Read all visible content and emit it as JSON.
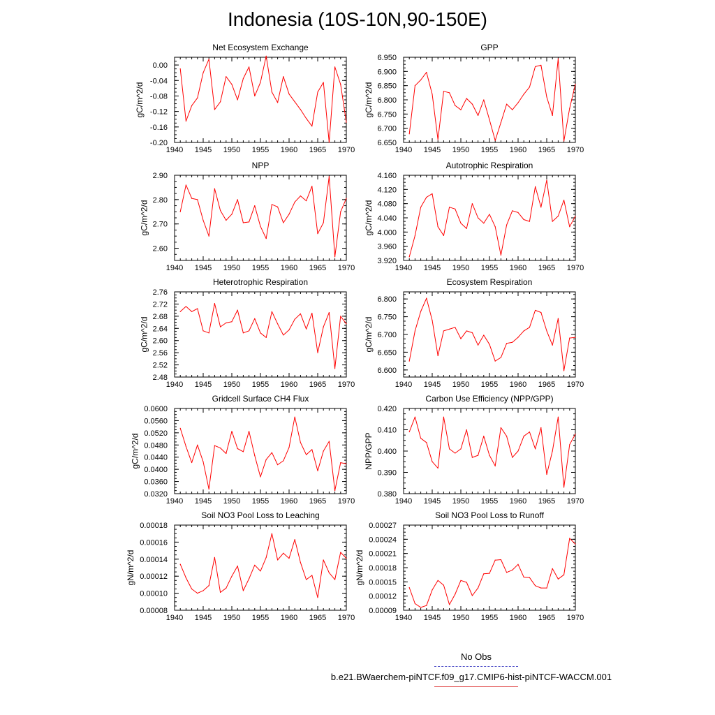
{
  "title": "Indonesia (10S-10N,90-150E)",
  "legend": {
    "obs_label": "No Obs",
    "model_label": "b.e21.BWaerchem-piNTCF.f09_g17.CMIP6-hist-piNTCF-WACCM.001",
    "obs_color": "#5050c8",
    "model_color": "#ff0000"
  },
  "chart_data": [
    {
      "type": "line",
      "title": "Net Ecosystem Exchange",
      "ylabel": "gC/m^2/d",
      "xlim": [
        1940,
        1970
      ],
      "ylim": [
        -0.2,
        0.02
      ],
      "yticks": [
        -0.2,
        -0.16,
        -0.12,
        -0.08,
        -0.04,
        0.0
      ],
      "ytick_labels": [
        "-0.20",
        "-0.16",
        "-0.12",
        "-0.08",
        "-0.04",
        "0.00"
      ],
      "xticks": [
        1940,
        1945,
        1950,
        1955,
        1960,
        1965,
        1970
      ],
      "x": [
        1941,
        1942,
        1943,
        1944,
        1945,
        1946,
        1947,
        1948,
        1949,
        1950,
        1951,
        1952,
        1953,
        1954,
        1955,
        1956,
        1957,
        1958,
        1959,
        1960,
        1961,
        1962,
        1963,
        1964,
        1965,
        1966,
        1967,
        1968,
        1969,
        1970
      ],
      "values": [
        -0.01,
        -0.145,
        -0.105,
        -0.085,
        -0.02,
        0.015,
        -0.115,
        -0.095,
        -0.03,
        -0.05,
        -0.09,
        -0.035,
        -0.005,
        -0.08,
        -0.045,
        0.023,
        -0.07,
        -0.097,
        -0.03,
        -0.075,
        -0.095,
        -0.115,
        -0.138,
        -0.158,
        -0.07,
        -0.045,
        -0.2,
        -0.005,
        -0.05,
        -0.148
      ]
    },
    {
      "type": "line",
      "title": "GPP",
      "ylabel": "gC/m^2/d",
      "xlim": [
        1940,
        1970
      ],
      "ylim": [
        6.65,
        6.95
      ],
      "yticks": [
        6.65,
        6.7,
        6.75,
        6.8,
        6.85,
        6.9,
        6.95
      ],
      "ytick_labels": [
        "6.650",
        "6.700",
        "6.750",
        "6.800",
        "6.850",
        "6.900",
        "6.950"
      ],
      "xticks": [
        1940,
        1945,
        1950,
        1955,
        1960,
        1965,
        1970
      ],
      "x": [
        1941,
        1942,
        1943,
        1944,
        1945,
        1946,
        1947,
        1948,
        1949,
        1950,
        1951,
        1952,
        1953,
        1954,
        1955,
        1956,
        1957,
        1958,
        1959,
        1960,
        1961,
        1962,
        1963,
        1964,
        1965,
        1966,
        1967,
        1968,
        1969,
        1970
      ],
      "values": [
        6.68,
        6.85,
        6.87,
        6.897,
        6.82,
        6.66,
        6.83,
        6.825,
        6.78,
        6.765,
        6.805,
        6.785,
        6.745,
        6.8,
        6.73,
        6.657,
        6.72,
        6.785,
        6.765,
        6.79,
        6.82,
        6.845,
        6.917,
        6.922,
        6.81,
        6.745,
        6.945,
        6.655,
        6.77,
        6.855
      ]
    },
    {
      "type": "line",
      "title": "NPP",
      "ylabel": "gC/m^2/d",
      "xlim": [
        1940,
        1970
      ],
      "ylim": [
        2.55,
        2.9
      ],
      "yticks": [
        2.6,
        2.7,
        2.8,
        2.9
      ],
      "ytick_labels": [
        "2.60",
        "2.70",
        "2.80",
        "2.90"
      ],
      "xticks": [
        1940,
        1945,
        1950,
        1955,
        1960,
        1965,
        1970
      ],
      "x": [
        1941,
        1942,
        1943,
        1944,
        1945,
        1946,
        1947,
        1948,
        1949,
        1950,
        1951,
        1952,
        1953,
        1954,
        1955,
        1956,
        1957,
        1958,
        1959,
        1960,
        1961,
        1962,
        1963,
        1964,
        1965,
        1966,
        1967,
        1968,
        1969,
        1970
      ],
      "values": [
        2.75,
        2.86,
        2.805,
        2.8,
        2.715,
        2.65,
        2.845,
        2.755,
        2.715,
        2.74,
        2.8,
        2.705,
        2.708,
        2.775,
        2.69,
        2.64,
        2.78,
        2.77,
        2.705,
        2.74,
        2.79,
        2.815,
        2.795,
        2.855,
        2.66,
        2.705,
        2.895,
        2.565,
        2.75,
        2.805
      ]
    },
    {
      "type": "line",
      "title": "Autotrophic Respiration",
      "ylabel": "gC/m^2/d",
      "xlim": [
        1940,
        1970
      ],
      "ylim": [
        3.92,
        4.16
      ],
      "yticks": [
        3.92,
        3.96,
        4.0,
        4.04,
        4.08,
        4.12,
        4.16
      ],
      "ytick_labels": [
        "3.920",
        "3.960",
        "4.000",
        "4.040",
        "4.080",
        "4.120",
        "4.160"
      ],
      "xticks": [
        1940,
        1945,
        1950,
        1955,
        1960,
        1965,
        1970
      ],
      "x": [
        1941,
        1942,
        1943,
        1944,
        1945,
        1946,
        1947,
        1948,
        1949,
        1950,
        1951,
        1952,
        1953,
        1954,
        1955,
        1956,
        1957,
        1958,
        1959,
        1960,
        1961,
        1962,
        1963,
        1964,
        1965,
        1966,
        1967,
        1968,
        1969,
        1970
      ],
      "values": [
        3.93,
        3.99,
        4.07,
        4.098,
        4.108,
        4.015,
        3.99,
        4.07,
        4.065,
        4.025,
        4.01,
        4.08,
        4.04,
        4.025,
        4.05,
        4.015,
        3.935,
        4.02,
        4.06,
        4.055,
        4.035,
        4.03,
        4.128,
        4.07,
        4.146,
        4.03,
        4.045,
        4.09,
        4.015,
        4.045
      ]
    },
    {
      "type": "line",
      "title": "Heterotrophic Respiration",
      "ylabel": "gC/m^2/d",
      "xlim": [
        1940,
        1970
      ],
      "ylim": [
        2.48,
        2.76
      ],
      "yticks": [
        2.48,
        2.52,
        2.56,
        2.6,
        2.64,
        2.68,
        2.72,
        2.76
      ],
      "ytick_labels": [
        "2.48",
        "2.52",
        "2.56",
        "2.60",
        "2.64",
        "2.68",
        "2.72",
        "2.76"
      ],
      "xticks": [
        1940,
        1945,
        1950,
        1955,
        1960,
        1965,
        1970
      ],
      "x": [
        1941,
        1942,
        1943,
        1944,
        1945,
        1946,
        1947,
        1948,
        1949,
        1950,
        1951,
        1952,
        1953,
        1954,
        1955,
        1956,
        1957,
        1958,
        1959,
        1960,
        1961,
        1962,
        1963,
        1964,
        1965,
        1966,
        1967,
        1968,
        1969,
        1970
      ],
      "values": [
        2.695,
        2.712,
        2.695,
        2.705,
        2.632,
        2.625,
        2.722,
        2.645,
        2.658,
        2.662,
        2.7,
        2.625,
        2.632,
        2.672,
        2.625,
        2.61,
        2.695,
        2.655,
        2.618,
        2.635,
        2.67,
        2.688,
        2.638,
        2.69,
        2.56,
        2.645,
        2.692,
        2.508,
        2.68,
        2.655
      ]
    },
    {
      "type": "line",
      "title": "Ecosystem Respiration",
      "ylabel": "gC/m^2/d",
      "xlim": [
        1940,
        1970
      ],
      "ylim": [
        6.58,
        6.82
      ],
      "yticks": [
        6.6,
        6.65,
        6.7,
        6.75,
        6.8
      ],
      "ytick_labels": [
        "6.600",
        "6.650",
        "6.700",
        "6.750",
        "6.800"
      ],
      "xticks": [
        1940,
        1945,
        1950,
        1955,
        1960,
        1965,
        1970
      ],
      "x": [
        1941,
        1942,
        1943,
        1944,
        1945,
        1946,
        1947,
        1948,
        1949,
        1950,
        1951,
        1952,
        1953,
        1954,
        1955,
        1956,
        1957,
        1958,
        1959,
        1960,
        1961,
        1962,
        1963,
        1964,
        1965,
        1966,
        1967,
        1968,
        1969,
        1970
      ],
      "values": [
        6.625,
        6.71,
        6.765,
        6.802,
        6.74,
        6.64,
        6.71,
        6.715,
        6.72,
        6.688,
        6.71,
        6.705,
        6.67,
        6.698,
        6.672,
        6.625,
        6.635,
        6.675,
        6.678,
        6.692,
        6.71,
        6.72,
        6.768,
        6.762,
        6.71,
        6.67,
        6.745,
        6.598,
        6.69,
        6.692
      ]
    },
    {
      "type": "line",
      "title": "Gridcell Surface CH4 Flux",
      "ylabel": "gC/m^2/d",
      "xlim": [
        1940,
        1970
      ],
      "ylim": [
        0.032,
        0.06
      ],
      "yticks": [
        0.032,
        0.036,
        0.04,
        0.044,
        0.048,
        0.052,
        0.056,
        0.06
      ],
      "ytick_labels": [
        "0.0320",
        "0.0360",
        "0.0400",
        "0.0440",
        "0.0480",
        "0.0520",
        "0.0560",
        "0.0600"
      ],
      "xticks": [
        1940,
        1945,
        1950,
        1955,
        1960,
        1965,
        1970
      ],
      "x": [
        1941,
        1942,
        1943,
        1944,
        1945,
        1946,
        1947,
        1948,
        1949,
        1950,
        1951,
        1952,
        1953,
        1954,
        1955,
        1956,
        1957,
        1958,
        1959,
        1960,
        1961,
        1962,
        1963,
        1964,
        1965,
        1966,
        1967,
        1968,
        1969,
        1970
      ],
      "values": [
        0.0535,
        0.0475,
        0.0422,
        0.048,
        0.0425,
        0.0335,
        0.0478,
        0.047,
        0.0452,
        0.0525,
        0.0468,
        0.0458,
        0.0525,
        0.0445,
        0.0375,
        0.0432,
        0.0455,
        0.0415,
        0.0428,
        0.0472,
        0.0572,
        0.0488,
        0.0448,
        0.0465,
        0.0395,
        0.046,
        0.0492,
        0.033,
        0.0422,
        0.0418
      ]
    },
    {
      "type": "line",
      "title": "Carbon Use Efficiency (NPP/GPP)",
      "ylabel": "NPP/GPP",
      "xlim": [
        1940,
        1970
      ],
      "ylim": [
        0.38,
        0.42
      ],
      "yticks": [
        0.38,
        0.39,
        0.4,
        0.41,
        0.42
      ],
      "ytick_labels": [
        "0.380",
        "0.390",
        "0.400",
        "0.410",
        "0.420"
      ],
      "xticks": [
        1940,
        1945,
        1950,
        1955,
        1960,
        1965,
        1970
      ],
      "x": [
        1941,
        1942,
        1943,
        1944,
        1945,
        1946,
        1947,
        1948,
        1949,
        1950,
        1951,
        1952,
        1953,
        1954,
        1955,
        1956,
        1957,
        1958,
        1959,
        1960,
        1961,
        1962,
        1963,
        1964,
        1965,
        1966,
        1967,
        1968,
        1969,
        1970
      ],
      "values": [
        0.409,
        0.416,
        0.406,
        0.404,
        0.395,
        0.392,
        0.416,
        0.401,
        0.399,
        0.401,
        0.41,
        0.397,
        0.398,
        0.407,
        0.398,
        0.393,
        0.411,
        0.407,
        0.397,
        0.4,
        0.407,
        0.409,
        0.401,
        0.411,
        0.389,
        0.4,
        0.416,
        0.383,
        0.403,
        0.408
      ]
    },
    {
      "type": "line",
      "title": "Soil NO3 Pool Loss to Leaching",
      "ylabel": "gN/m^2/d",
      "xlim": [
        1940,
        1970
      ],
      "ylim": [
        8e-05,
        0.00018
      ],
      "yticks": [
        8e-05,
        0.0001,
        0.00012,
        0.00014,
        0.00016,
        0.00018
      ],
      "ytick_labels": [
        "0.00008",
        "0.00010",
        "0.00012",
        "0.00014",
        "0.00016",
        "0.00018"
      ],
      "xticks": [
        1940,
        1945,
        1950,
        1955,
        1960,
        1965,
        1970
      ],
      "x": [
        1941,
        1942,
        1943,
        1944,
        1945,
        1946,
        1947,
        1948,
        1949,
        1950,
        1951,
        1952,
        1953,
        1954,
        1955,
        1956,
        1957,
        1958,
        1959,
        1960,
        1961,
        1962,
        1963,
        1964,
        1965,
        1966,
        1967,
        1968,
        1969,
        1970
      ],
      "values": [
        0.000134,
        0.000118,
        0.000105,
        0.0001,
        0.000103,
        0.000109,
        0.000142,
        0.000101,
        0.000106,
        0.00012,
        0.000132,
        0.000103,
        0.000117,
        0.000133,
        0.000126,
        0.000142,
        0.00017,
        0.000139,
        0.000147,
        0.000141,
        0.000163,
        0.000136,
        0.000116,
        0.000121,
        9.5e-05,
        0.000139,
        0.000124,
        0.000116,
        0.000148,
        0.000141
      ]
    },
    {
      "type": "line",
      "title": "Soil NO3 Pool Loss to Runoff",
      "ylabel": "gN/m^2/d",
      "xlim": [
        1940,
        1970
      ],
      "ylim": [
        9e-05,
        0.00027
      ],
      "yticks": [
        9e-05,
        0.00012,
        0.00015,
        0.00018,
        0.00021,
        0.00024,
        0.00027
      ],
      "ytick_labels": [
        "0.00009",
        "0.00012",
        "0.00015",
        "0.00018",
        "0.00021",
        "0.00024",
        "0.00027"
      ],
      "xticks": [
        1940,
        1945,
        1950,
        1955,
        1960,
        1965,
        1970
      ],
      "x": [
        1941,
        1942,
        1943,
        1944,
        1945,
        1946,
        1947,
        1948,
        1949,
        1950,
        1951,
        1952,
        1953,
        1954,
        1955,
        1956,
        1957,
        1958,
        1959,
        1960,
        1961,
        1962,
        1963,
        1964,
        1965,
        1966,
        1967,
        1968,
        1969,
        1970
      ],
      "values": [
        0.000138,
        0.000104,
        9.6e-05,
        0.0001,
        0.000133,
        0.000153,
        0.000143,
        0.000102,
        0.000124,
        0.000153,
        0.000149,
        0.000121,
        0.000137,
        0.000167,
        0.000168,
        0.000196,
        0.000197,
        0.00017,
        0.000175,
        0.000187,
        0.00016,
        0.000159,
        0.000142,
        0.000137,
        0.000137,
        0.000178,
        0.000156,
        0.000165,
        0.000242,
        0.00023
      ]
    }
  ]
}
